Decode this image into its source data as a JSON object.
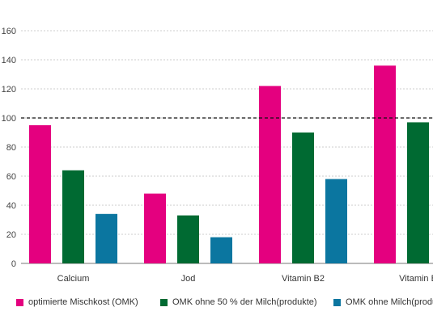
{
  "chart_data": {
    "type": "bar",
    "title": "",
    "xlabel": "",
    "ylabel": "",
    "categories": [
      "Calcium",
      "Jod",
      "Vitamin B2",
      "Vitamin B"
    ],
    "series": [
      {
        "name": "optimierte Mischkost (OMK)",
        "color": "#e4007f",
        "values": [
          95,
          48,
          122,
          136
        ]
      },
      {
        "name": "OMK ohne 50 % der Milch(produkte)",
        "color": "#006a32",
        "values": [
          64,
          33,
          90,
          97
        ]
      },
      {
        "name": "OMK ohne Milch(produkte)",
        "color": "#0b76a0",
        "values": [
          34,
          18,
          58,
          null
        ]
      }
    ],
    "ylim": [
      0,
      160
    ],
    "yticks": [
      0,
      20,
      40,
      60,
      80,
      100,
      120,
      140,
      160
    ],
    "grid": true,
    "reference_line": 100,
    "legend_position": "bottom"
  }
}
